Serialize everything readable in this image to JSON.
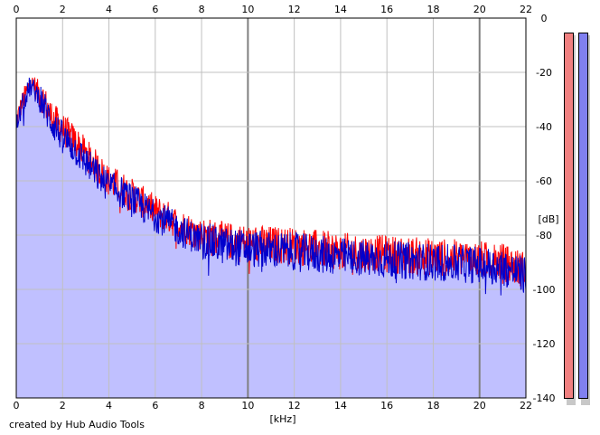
{
  "chart_data": {
    "type": "area",
    "xlabel": "[kHz]",
    "ylabel": "[dB]",
    "xlim": [
      0,
      22
    ],
    "ylim": [
      -140,
      0
    ],
    "x_ticks": [
      "0",
      "2",
      "4",
      "6",
      "8",
      "10",
      "12",
      "14",
      "16",
      "18",
      "20",
      "22"
    ],
    "y_ticks": [
      "0",
      "-20",
      "-40",
      "-60",
      "-80",
      "-100",
      "-120",
      "-140"
    ],
    "grid": true,
    "series": [
      {
        "color": "#ff0000",
        "envelope": [
          [
            0,
            -38
          ],
          [
            0.3,
            -30
          ],
          [
            0.6,
            -24
          ],
          [
            1,
            -27
          ],
          [
            1.5,
            -36
          ],
          [
            2,
            -41
          ],
          [
            2.5,
            -45
          ],
          [
            3,
            -50
          ],
          [
            3.5,
            -55
          ],
          [
            4,
            -60
          ],
          [
            4.5,
            -62
          ],
          [
            5,
            -65
          ],
          [
            5.5,
            -68
          ],
          [
            6,
            -71
          ],
          [
            6.5,
            -73
          ],
          [
            7,
            -76
          ],
          [
            7.5,
            -78
          ],
          [
            8,
            -80
          ],
          [
            8.5,
            -81
          ],
          [
            9,
            -82
          ],
          [
            10,
            -83
          ],
          [
            12,
            -84
          ],
          [
            14,
            -86
          ],
          [
            16,
            -87
          ],
          [
            18,
            -88
          ],
          [
            20,
            -89
          ],
          [
            21,
            -90
          ],
          [
            22,
            -93
          ]
        ]
      },
      {
        "color": "#0000cc",
        "envelope": [
          [
            0,
            -40
          ],
          [
            0.3,
            -31
          ],
          [
            0.6,
            -25
          ],
          [
            1,
            -29
          ],
          [
            1.5,
            -38
          ],
          [
            2,
            -44
          ],
          [
            2.5,
            -48
          ],
          [
            3,
            -53
          ],
          [
            3.5,
            -58
          ],
          [
            4,
            -62
          ],
          [
            4.5,
            -64
          ],
          [
            5,
            -67
          ],
          [
            5.5,
            -70
          ],
          [
            6,
            -73
          ],
          [
            6.5,
            -75
          ],
          [
            7,
            -78
          ],
          [
            7.5,
            -80
          ],
          [
            8,
            -82
          ],
          [
            8.5,
            -83
          ],
          [
            9,
            -84
          ],
          [
            10,
            -85
          ],
          [
            12,
            -86
          ],
          [
            14,
            -88
          ],
          [
            16,
            -89
          ],
          [
            18,
            -90
          ],
          [
            20,
            -91
          ],
          [
            21,
            -92
          ],
          [
            22,
            -95
          ]
        ]
      }
    ]
  },
  "meters": [
    {
      "color": "#f08080",
      "level_db": -140
    },
    {
      "color": "#8080f0",
      "level_db": -140
    }
  ],
  "credit": "created by Hub Audio Tools",
  "colors": {
    "fill": "#c0c0ff",
    "grid": "#c0c0c0",
    "grid_major": "#808080"
  }
}
